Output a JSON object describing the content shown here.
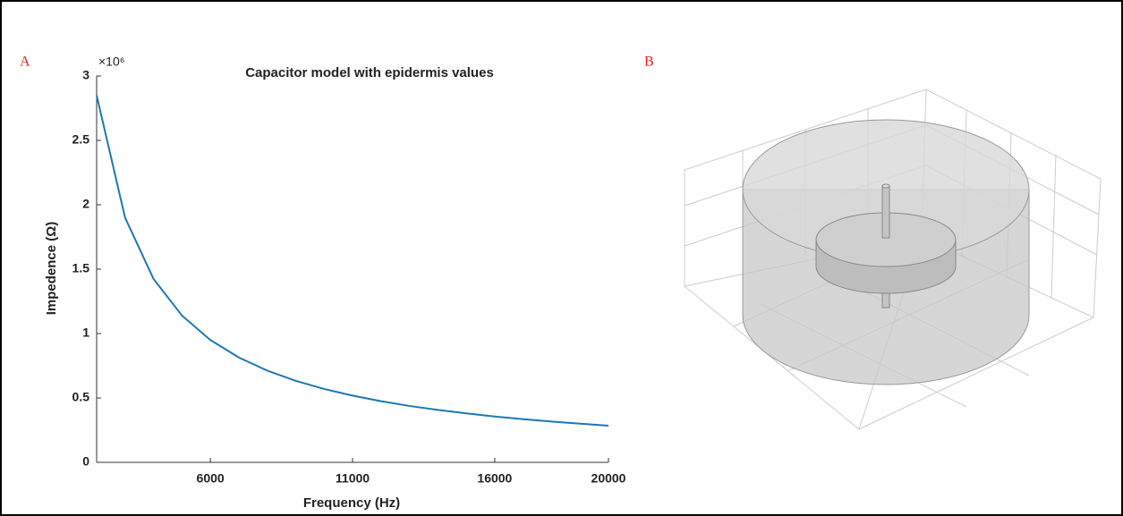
{
  "chart_data": {
    "type": "line",
    "panel_label": "A",
    "title": "Capacitor model with epidermis values",
    "x_label": "Frequency (Hz)",
    "y_label": "Impedence (Ω)",
    "y_multiplier": "×10⁶",
    "x": [
      2000,
      3000,
      4000,
      5000,
      6000,
      7000,
      8000,
      9000,
      10000,
      11000,
      12000,
      13000,
      14000,
      15000,
      16000,
      17000,
      18000,
      19000,
      20000
    ],
    "series": [
      {
        "color": "#1f77b4",
        "values": [
          2.85,
          1.9,
          1.425,
          1.14,
          0.95,
          0.814,
          0.7125,
          0.633,
          0.57,
          0.518,
          0.475,
          0.438,
          0.407,
          0.38,
          0.356,
          0.335,
          0.317,
          0.3,
          0.285
        ]
      }
    ],
    "xlim": [
      2000,
      20000
    ],
    "xticks": [
      6000,
      11000,
      16000,
      20000
    ],
    "ylim": [
      0,
      3
    ],
    "yticks": [
      0,
      0.5,
      1,
      1.5,
      2,
      2.5,
      3
    ]
  },
  "panel_b": {
    "label": "B"
  }
}
